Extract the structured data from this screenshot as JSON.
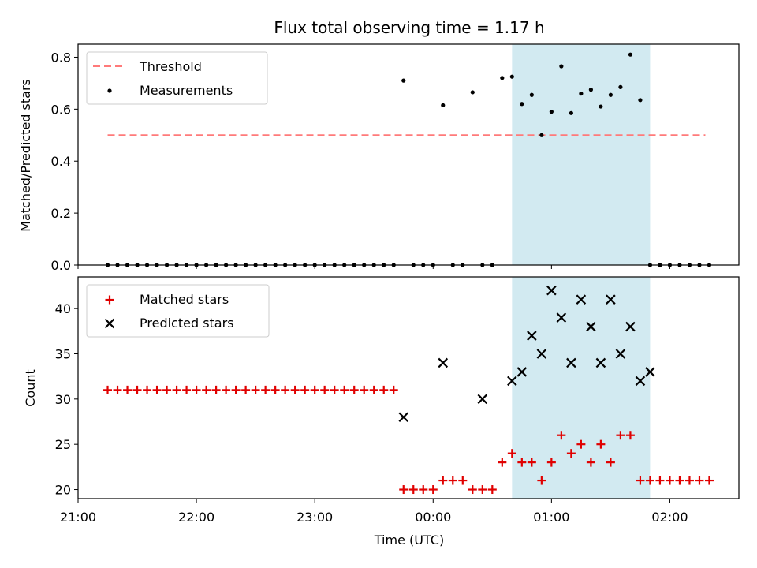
{
  "title": "Flux total observing time = 1.17 h",
  "colors": {
    "threshold": "#ff7a7a",
    "measurement": "#000000",
    "matched": "#e00000",
    "predicted": "#000000",
    "span": "#add8e6"
  },
  "chart_data": [
    {
      "type": "scatter",
      "panel": "top",
      "ylabel": "Matched/Predicted stars",
      "xlim": [
        "21:00",
        "02:35"
      ],
      "ylim": [
        0,
        0.85
      ],
      "yticks": [
        "0.0",
        "0.2",
        "0.4",
        "0.6",
        "0.8"
      ],
      "highlight_span": [
        "00:40",
        "01:50"
      ],
      "legend": {
        "placement": "upper-left",
        "entries": [
          "Threshold",
          "Measurements"
        ]
      },
      "threshold": {
        "name": "Threshold",
        "value": 0.5,
        "x_range": [
          "21:15",
          "02:18"
        ],
        "style": "dashed"
      },
      "series": [
        {
          "name": "Measurements",
          "x": [
            "21:15",
            "21:20",
            "21:25",
            "21:30",
            "21:35",
            "21:40",
            "21:45",
            "21:50",
            "21:55",
            "22:00",
            "22:05",
            "22:10",
            "22:15",
            "22:20",
            "22:25",
            "22:30",
            "22:35",
            "22:40",
            "22:45",
            "22:50",
            "22:55",
            "23:00",
            "23:05",
            "23:10",
            "23:15",
            "23:20",
            "23:25",
            "23:30",
            "23:35",
            "23:40",
            "23:45",
            "23:50",
            "23:55",
            "00:00",
            "00:05",
            "00:10",
            "00:15",
            "00:20",
            "00:25",
            "00:30",
            "00:35",
            "00:40",
            "00:45",
            "00:50",
            "00:55",
            "01:00",
            "01:05",
            "01:10",
            "01:15",
            "01:20",
            "01:25",
            "01:30",
            "01:35",
            "01:40",
            "01:45",
            "01:50",
            "01:55",
            "02:00",
            "02:05",
            "02:10",
            "02:15",
            "02:20"
          ],
          "y": [
            0,
            0,
            0,
            0,
            0,
            0,
            0,
            0,
            0,
            0,
            0,
            0,
            0,
            0,
            0,
            0,
            0,
            0,
            0,
            0,
            0,
            0,
            0,
            0,
            0,
            0,
            0,
            0,
            0,
            0,
            0.71,
            0,
            0,
            0,
            0.615,
            0,
            0,
            0.665,
            0,
            0,
            0.72,
            0.725,
            0.62,
            0.655,
            0.5,
            0.59,
            0.765,
            0.585,
            0.66,
            0.675,
            0.61,
            0.655,
            0.685,
            0.81,
            0.635,
            0,
            0,
            0,
            0,
            0,
            0,
            0
          ]
        }
      ]
    },
    {
      "type": "scatter",
      "panel": "bottom",
      "xlabel": "Time (UTC)",
      "ylabel": "Count",
      "xlim": [
        "21:00",
        "02:35"
      ],
      "ylim": [
        19,
        43.5
      ],
      "yticks": [
        "20",
        "25",
        "30",
        "35",
        "40"
      ],
      "xticks": [
        "21:00",
        "22:00",
        "23:00",
        "00:00",
        "01:00",
        "02:00"
      ],
      "highlight_span": [
        "00:40",
        "01:50"
      ],
      "legend": {
        "placement": "upper-left",
        "entries": [
          "Matched stars",
          "Predicted stars"
        ]
      },
      "series": [
        {
          "name": "Matched stars",
          "marker": "+",
          "x": [
            "21:15",
            "21:20",
            "21:25",
            "21:30",
            "21:35",
            "21:40",
            "21:45",
            "21:50",
            "21:55",
            "22:00",
            "22:05",
            "22:10",
            "22:15",
            "22:20",
            "22:25",
            "22:30",
            "22:35",
            "22:40",
            "22:45",
            "22:50",
            "22:55",
            "23:00",
            "23:05",
            "23:10",
            "23:15",
            "23:20",
            "23:25",
            "23:30",
            "23:35",
            "23:40",
            "23:45",
            "23:50",
            "23:55",
            "00:00",
            "00:05",
            "00:10",
            "00:15",
            "00:20",
            "00:25",
            "00:30",
            "00:35",
            "00:40",
            "00:45",
            "00:50",
            "00:55",
            "01:00",
            "01:05",
            "01:10",
            "01:15",
            "01:20",
            "01:25",
            "01:30",
            "01:35",
            "01:40",
            "01:45",
            "01:50",
            "01:55",
            "02:00",
            "02:05",
            "02:10",
            "02:15",
            "02:20"
          ],
          "y": [
            31,
            31,
            31,
            31,
            31,
            31,
            31,
            31,
            31,
            31,
            31,
            31,
            31,
            31,
            31,
            31,
            31,
            31,
            31,
            31,
            31,
            31,
            31,
            31,
            31,
            31,
            31,
            31,
            31,
            31,
            20,
            20,
            20,
            20,
            21,
            21,
            21,
            20,
            20,
            20,
            23,
            24,
            23,
            23,
            21,
            23,
            26,
            24,
            25,
            23,
            25,
            23,
            26,
            26,
            21,
            21,
            21,
            21,
            21,
            21,
            21,
            21
          ]
        },
        {
          "name": "Predicted stars",
          "marker": "x",
          "x": [
            "23:45",
            "00:05",
            "00:25",
            "00:40",
            "00:45",
            "00:50",
            "00:55",
            "01:00",
            "01:05",
            "01:10",
            "01:15",
            "01:20",
            "01:25",
            "01:30",
            "01:35",
            "01:40",
            "01:45",
            "01:50"
          ],
          "y": [
            28,
            34,
            30,
            32,
            33,
            37,
            35,
            42,
            39,
            34,
            41,
            38,
            34,
            41,
            35,
            38,
            32,
            33
          ]
        }
      ]
    }
  ]
}
